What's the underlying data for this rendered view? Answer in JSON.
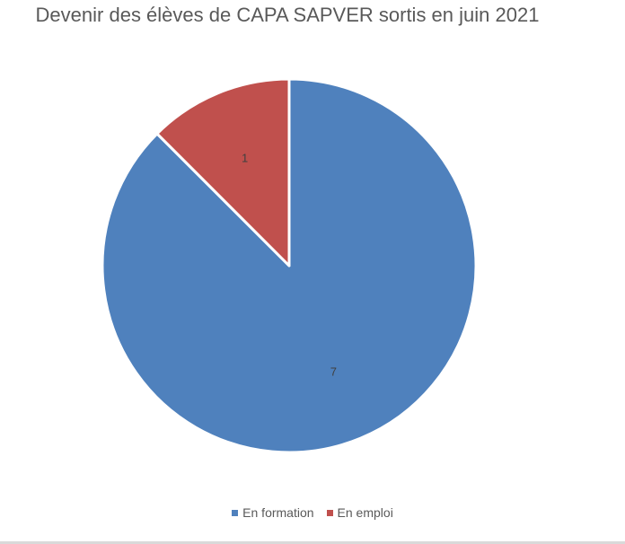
{
  "chart_data": {
    "type": "pie",
    "title": "Devenir des élèves de CAPA SAPVER sortis en juin 2021",
    "categories": [
      "En formation",
      "En emploi"
    ],
    "values": [
      7,
      1
    ],
    "data_labels": [
      "7",
      "1"
    ],
    "colors": [
      "#4f81bd",
      "#c0504d"
    ],
    "start_angle_deg": 0,
    "direction": "clockwise",
    "legend": "bottom"
  }
}
